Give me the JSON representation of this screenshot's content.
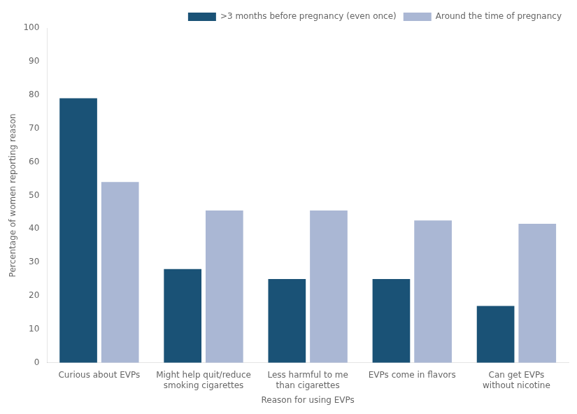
{
  "chart_data": {
    "type": "bar",
    "categories": [
      "Curious about EVPs",
      "Might help quit/reduce\nsmoking cigarettes",
      "Less harmful to me\nthan cigarettes",
      "EVPs come in flavors",
      "Can get EVPs\nwithout nicotine"
    ],
    "series": [
      {
        "name": ">3 months before pregnancy (even once)",
        "color": "#1a5276",
        "values": [
          79,
          28,
          25,
          25,
          17
        ]
      },
      {
        "name": "Around the time of pregnancy",
        "color": "#aab7d4",
        "values": [
          54,
          45.5,
          45.5,
          42.5,
          41.5
        ]
      }
    ],
    "xlabel": "Reason for using EVPs",
    "ylabel": "Percentage of women reporting reason",
    "ylim": [
      0,
      100
    ],
    "yticks": [
      0,
      10,
      20,
      30,
      40,
      50,
      60,
      70,
      80,
      90,
      100
    ],
    "grid": false,
    "legend": "upper right"
  }
}
